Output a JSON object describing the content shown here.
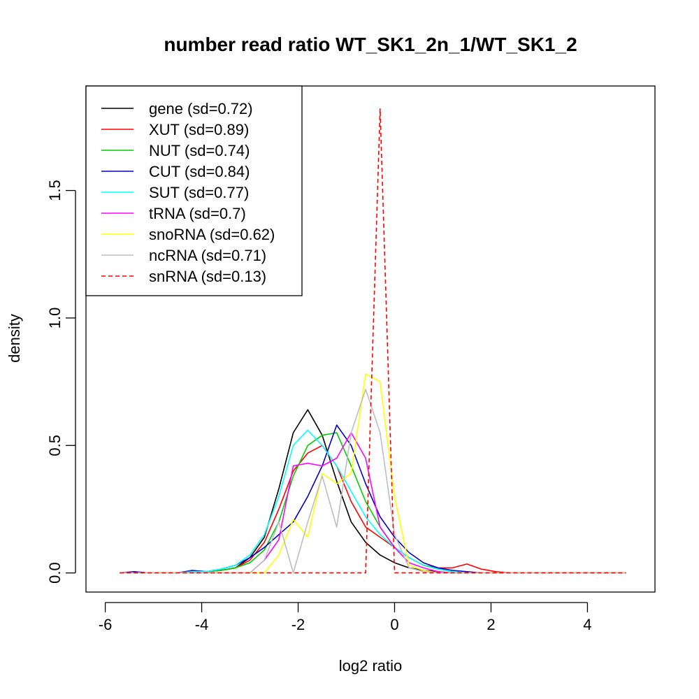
{
  "chart_data": {
    "type": "line",
    "title": "number read ratio WT_SK1_2n_1/WT_SK1_2",
    "xlabel": "log2 ratio",
    "ylabel": "density",
    "xlim": [
      -6.4,
      5.4
    ],
    "ylim": [
      -0.075,
      1.91
    ],
    "xticks": [
      -6,
      -4,
      -2,
      0,
      2,
      4
    ],
    "yticks": [
      0.0,
      0.5,
      1.0,
      1.5
    ],
    "x_tick_labels": [
      "-6",
      "-4",
      "-2",
      "0",
      "2",
      "4"
    ],
    "y_tick_labels": [
      "0.0",
      "0.5",
      "1.0",
      "1.5"
    ],
    "grid": false,
    "legend_position": "top-left",
    "x": [
      -5.7,
      -5.4,
      -5.1,
      -4.8,
      -4.5,
      -4.2,
      -3.9,
      -3.6,
      -3.3,
      -3.0,
      -2.7,
      -2.4,
      -2.1,
      -1.8,
      -1.5,
      -1.2,
      -0.9,
      -0.6,
      -0.3,
      0.0,
      0.3,
      0.6,
      0.9,
      1.2,
      1.5,
      1.8,
      2.1,
      2.4,
      2.7,
      3.0,
      3.3,
      3.6,
      3.9,
      4.2,
      4.5,
      4.8
    ],
    "series": [
      {
        "name": "gene (sd=0.72)",
        "color": "#000000",
        "dash": false,
        "values": [
          0,
          0,
          0,
          0,
          0,
          0.005,
          0.005,
          0.01,
          0.02,
          0.06,
          0.14,
          0.33,
          0.55,
          0.64,
          0.54,
          0.36,
          0.2,
          0.12,
          0.07,
          0.04,
          0.02,
          0.01,
          0.005,
          0,
          0,
          0,
          0,
          0,
          0,
          0,
          0,
          0,
          0,
          0,
          0,
          0
        ]
      },
      {
        "name": "XUT (sd=0.89)",
        "color": "#ff0000",
        "dash": false,
        "values": [
          0,
          0,
          0,
          0,
          0,
          0.005,
          0.005,
          0.01,
          0.02,
          0.05,
          0.12,
          0.25,
          0.4,
          0.47,
          0.5,
          0.42,
          0.28,
          0.18,
          0.14,
          0.1,
          0.06,
          0.03,
          0.02,
          0.02,
          0.035,
          0.015,
          0.005,
          0,
          0,
          0,
          0,
          0,
          0,
          0,
          0,
          0
        ]
      },
      {
        "name": "NUT (sd=0.74)",
        "color": "#00cd00",
        "dash": false,
        "values": [
          0,
          0,
          0,
          0,
          0,
          0.005,
          0.005,
          0.01,
          0.02,
          0.04,
          0.09,
          0.2,
          0.38,
          0.5,
          0.54,
          0.55,
          0.42,
          0.28,
          0.18,
          0.1,
          0.06,
          0.03,
          0.015,
          0.005,
          0,
          0,
          0,
          0,
          0,
          0,
          0,
          0,
          0,
          0,
          0,
          0
        ]
      },
      {
        "name": "CUT (sd=0.84)",
        "color": "#0000cd",
        "dash": false,
        "values": [
          0,
          0.005,
          0,
          0,
          0,
          0.01,
          0.005,
          0.015,
          0.03,
          0.06,
          0.1,
          0.15,
          0.2,
          0.3,
          0.42,
          0.58,
          0.5,
          0.35,
          0.22,
          0.14,
          0.08,
          0.04,
          0.02,
          0.01,
          0.005,
          0,
          0,
          0,
          0,
          0,
          0,
          0,
          0,
          0,
          0,
          0
        ]
      },
      {
        "name": "SUT (sd=0.77)",
        "color": "#00ffff",
        "dash": false,
        "values": [
          0,
          0,
          0,
          0,
          0,
          0.005,
          0.005,
          0.015,
          0.03,
          0.07,
          0.15,
          0.3,
          0.5,
          0.56,
          0.5,
          0.42,
          0.32,
          0.22,
          0.15,
          0.1,
          0.06,
          0.03,
          0.015,
          0.005,
          0,
          0,
          0,
          0,
          0,
          0,
          0,
          0,
          0,
          0,
          0,
          0
        ]
      },
      {
        "name": "tRNA (sd=0.7)",
        "color": "#ff00ff",
        "dash": false,
        "values": [
          0,
          0,
          0,
          0,
          0,
          0,
          0,
          0,
          0,
          0,
          0.05,
          0.13,
          0.42,
          0.43,
          0.42,
          0.45,
          0.55,
          0.45,
          0.18,
          0.1,
          0.04,
          0.02,
          0.005,
          0,
          0,
          0,
          0,
          0,
          0,
          0,
          0,
          0,
          0,
          0,
          0,
          0
        ]
      },
      {
        "name": "snoRNA (sd=0.62)",
        "color": "#ffff00",
        "dash": false,
        "values": [
          0,
          0,
          0,
          0,
          0,
          0,
          0,
          0,
          0,
          0,
          0,
          0.07,
          0.21,
          0.14,
          0.39,
          0.35,
          0.39,
          0.78,
          0.75,
          0.3,
          0.03,
          0.01,
          0,
          0,
          0,
          0,
          0,
          0,
          0,
          0,
          0,
          0,
          0,
          0,
          0,
          0
        ]
      },
      {
        "name": "ncRNA (sd=0.71)",
        "color": "#bebebe",
        "dash": false,
        "values": [
          0,
          0,
          0,
          0,
          0,
          0,
          0,
          0,
          0,
          0,
          0.05,
          0.2,
          0,
          0.2,
          0.38,
          0.18,
          0.55,
          0.72,
          0.55,
          0.15,
          0.02,
          0.005,
          0,
          0,
          0,
          0,
          0,
          0,
          0,
          0,
          0,
          0,
          0,
          0,
          0,
          0
        ]
      },
      {
        "name": "snRNA (sd=0.13)",
        "color": "#ff0000",
        "dash": true,
        "values": [
          0,
          0,
          0,
          0,
          0,
          0,
          0,
          0,
          0,
          0,
          0,
          0,
          0,
          0,
          0,
          0,
          0,
          0,
          1.82,
          0,
          0,
          0,
          0,
          0,
          0,
          0,
          0,
          0,
          0,
          0,
          0,
          0,
          0,
          0,
          0,
          0
        ]
      }
    ]
  }
}
